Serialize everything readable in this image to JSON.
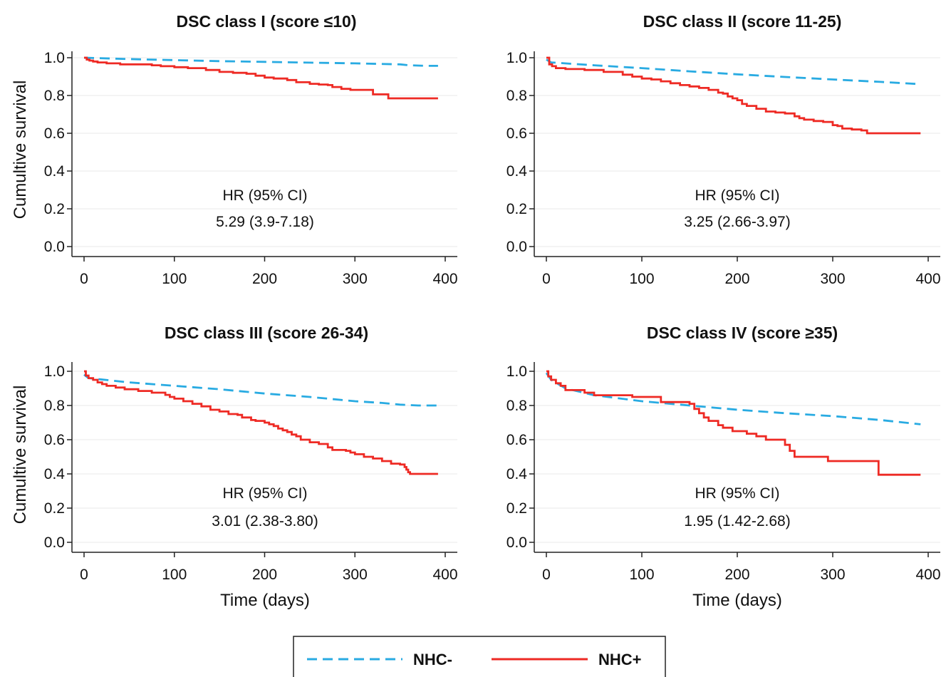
{
  "colors": {
    "nhc_minus": "#29ABE2",
    "nhc_plus": "#EE2A24",
    "grid": "#EAEAEA",
    "axis": "#222222"
  },
  "legend": {
    "items": [
      {
        "label": "NHC-",
        "style": "dashed",
        "color": "#29ABE2"
      },
      {
        "label": "NHC+",
        "style": "solid",
        "color": "#EE2A24"
      }
    ],
    "placement": "bottom-center"
  },
  "chart_data": [
    {
      "type": "line",
      "title": "DSC class I (score ≤10)",
      "ylabel": "Cumultive survival",
      "xlabel": "",
      "xlim": [
        0,
        400
      ],
      "ylim": [
        0,
        1
      ],
      "xticks": [
        "0",
        "100",
        "200",
        "300",
        "400"
      ],
      "yticks": [
        "0.0",
        "0.2",
        "0.4",
        "0.6",
        "0.8",
        "1.0"
      ],
      "annotation": {
        "line1": "HR (95% CI)",
        "line2": "5.29 (3.9-7.18)"
      },
      "series": [
        {
          "name": "NHC-",
          "step": false,
          "x": [
            0,
            50,
            100,
            150,
            200,
            250,
            300,
            350,
            360,
            380,
            392
          ],
          "y": [
            1.0,
            0.993,
            0.987,
            0.982,
            0.978,
            0.974,
            0.97,
            0.965,
            0.96,
            0.957,
            0.957
          ]
        },
        {
          "name": "NHC+",
          "step": true,
          "x": [
            0,
            3,
            6,
            10,
            15,
            25,
            40,
            60,
            75,
            85,
            100,
            115,
            135,
            150,
            165,
            180,
            190,
            200,
            210,
            225,
            235,
            250,
            260,
            270,
            275,
            285,
            295,
            320,
            330,
            337,
            392
          ],
          "y": [
            1.0,
            0.99,
            0.985,
            0.98,
            0.975,
            0.97,
            0.965,
            0.965,
            0.96,
            0.955,
            0.95,
            0.945,
            0.935,
            0.925,
            0.92,
            0.915,
            0.905,
            0.895,
            0.89,
            0.882,
            0.87,
            0.862,
            0.858,
            0.855,
            0.845,
            0.835,
            0.83,
            0.806,
            0.806,
            0.785,
            0.785
          ]
        }
      ]
    },
    {
      "type": "line",
      "title": "DSC class II (score 11-25)",
      "ylabel": "",
      "xlabel": "",
      "xlim": [
        0,
        400
      ],
      "ylim": [
        0,
        1
      ],
      "xticks": [
        "0",
        "100",
        "200",
        "300",
        "400"
      ],
      "yticks": [
        "0.0",
        "0.2",
        "0.4",
        "0.6",
        "0.8",
        "1.0"
      ],
      "annotation": {
        "line1": "HR (95% CI)",
        "line2": "3.25 (2.66-3.97)"
      },
      "series": [
        {
          "name": "NHC-",
          "step": false,
          "x": [
            0,
            5,
            50,
            100,
            150,
            200,
            250,
            300,
            350,
            392
          ],
          "y": [
            0.99,
            0.975,
            0.96,
            0.945,
            0.928,
            0.912,
            0.898,
            0.885,
            0.872,
            0.86
          ]
        },
        {
          "name": "NHC+",
          "step": true,
          "x": [
            0,
            3,
            6,
            10,
            20,
            40,
            60,
            80,
            90,
            100,
            110,
            120,
            130,
            140,
            150,
            160,
            170,
            180,
            185,
            190,
            195,
            200,
            205,
            210,
            220,
            230,
            240,
            250,
            260,
            265,
            270,
            280,
            290,
            300,
            305,
            310,
            320,
            330,
            336,
            350,
            392
          ],
          "y": [
            1.0,
            0.965,
            0.955,
            0.945,
            0.94,
            0.935,
            0.925,
            0.91,
            0.9,
            0.89,
            0.885,
            0.875,
            0.865,
            0.855,
            0.848,
            0.84,
            0.83,
            0.815,
            0.81,
            0.795,
            0.785,
            0.775,
            0.755,
            0.745,
            0.73,
            0.715,
            0.71,
            0.705,
            0.69,
            0.68,
            0.672,
            0.665,
            0.66,
            0.643,
            0.638,
            0.625,
            0.62,
            0.615,
            0.6,
            0.6,
            0.6
          ]
        }
      ]
    },
    {
      "type": "line",
      "title": "DSC class III (score 26-34)",
      "ylabel": "Cumultive survival",
      "xlabel": "Time (days)",
      "xlim": [
        0,
        400
      ],
      "ylim": [
        0,
        1
      ],
      "xticks": [
        "0",
        "100",
        "200",
        "300",
        "400"
      ],
      "yticks": [
        "0.0",
        "0.2",
        "0.4",
        "0.6",
        "0.8",
        "1.0"
      ],
      "annotation": {
        "line1": "HR (95% CI)",
        "line2": "3.01 (2.38-3.80)"
      },
      "series": [
        {
          "name": "NHC-",
          "step": false,
          "x": [
            0,
            5,
            50,
            100,
            150,
            200,
            250,
            300,
            330,
            350,
            370,
            392
          ],
          "y": [
            0.98,
            0.96,
            0.935,
            0.915,
            0.895,
            0.87,
            0.85,
            0.825,
            0.815,
            0.805,
            0.8,
            0.8
          ]
        },
        {
          "name": "NHC+",
          "step": true,
          "x": [
            0,
            2,
            5,
            10,
            15,
            20,
            25,
            35,
            45,
            60,
            75,
            90,
            95,
            100,
            110,
            120,
            130,
            140,
            150,
            160,
            170,
            175,
            185,
            190,
            200,
            205,
            210,
            215,
            220,
            225,
            230,
            235,
            240,
            250,
            260,
            270,
            275,
            290,
            295,
            300,
            310,
            320,
            330,
            340,
            350,
            355,
            357,
            359,
            361,
            392
          ],
          "y": [
            1.0,
            0.975,
            0.96,
            0.95,
            0.935,
            0.925,
            0.915,
            0.905,
            0.895,
            0.885,
            0.875,
            0.862,
            0.85,
            0.84,
            0.825,
            0.81,
            0.795,
            0.775,
            0.765,
            0.75,
            0.745,
            0.73,
            0.715,
            0.71,
            0.7,
            0.69,
            0.68,
            0.665,
            0.655,
            0.645,
            0.63,
            0.62,
            0.6,
            0.585,
            0.575,
            0.555,
            0.54,
            0.535,
            0.525,
            0.515,
            0.5,
            0.49,
            0.475,
            0.46,
            0.455,
            0.44,
            0.425,
            0.41,
            0.4,
            0.4
          ]
        }
      ]
    },
    {
      "type": "line",
      "title": "DSC class IV (score ≥35)",
      "ylabel": "",
      "xlabel": "Time (days)",
      "xlim": [
        0,
        400
      ],
      "ylim": [
        0,
        1
      ],
      "xticks": [
        "0",
        "100",
        "200",
        "300",
        "400"
      ],
      "yticks": [
        "0.0",
        "0.2",
        "0.4",
        "0.6",
        "0.8",
        "1.0"
      ],
      "annotation": {
        "line1": "HR (95% CI)",
        "line2": "1.95 (1.42-2.68)"
      },
      "series": [
        {
          "name": "NHC-",
          "step": false,
          "x": [
            0,
            5,
            20,
            50,
            100,
            150,
            200,
            250,
            300,
            350,
            392
          ],
          "y": [
            0.99,
            0.95,
            0.9,
            0.86,
            0.825,
            0.8,
            0.775,
            0.755,
            0.738,
            0.715,
            0.69
          ]
        },
        {
          "name": "NHC+",
          "step": true,
          "x": [
            0,
            2,
            5,
            10,
            15,
            20,
            40,
            50,
            70,
            90,
            110,
            120,
            150,
            155,
            160,
            165,
            170,
            180,
            185,
            195,
            210,
            220,
            230,
            250,
            255,
            260,
            295,
            348,
            392
          ],
          "y": [
            1.0,
            0.97,
            0.95,
            0.93,
            0.915,
            0.89,
            0.875,
            0.86,
            0.86,
            0.85,
            0.85,
            0.82,
            0.81,
            0.78,
            0.755,
            0.73,
            0.71,
            0.685,
            0.67,
            0.65,
            0.635,
            0.62,
            0.6,
            0.57,
            0.535,
            0.5,
            0.475,
            0.395,
            0.395
          ]
        }
      ]
    }
  ]
}
